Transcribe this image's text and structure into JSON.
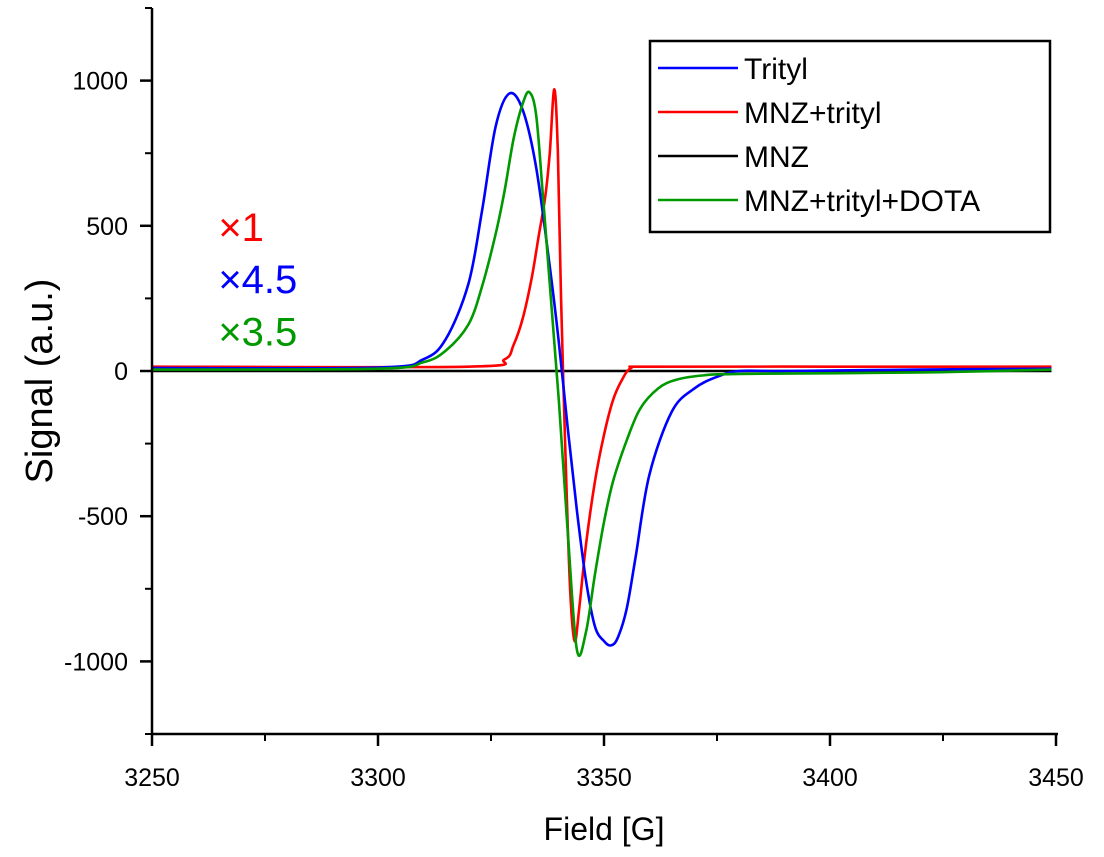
{
  "chart_data": {
    "type": "line",
    "xlabel": "Field [G]",
    "ylabel": "Signal (a.u.)",
    "xlim": [
      3250,
      3450
    ],
    "ylim": [
      -1250,
      1250
    ],
    "xticks": [
      3250,
      3300,
      3350,
      3400,
      3450
    ],
    "xtick_labels": [
      "3250",
      "3300",
      "3350",
      "3400",
      "3450"
    ],
    "yticks": [
      -1000,
      -500,
      0,
      500,
      1000
    ],
    "ytick_labels": [
      "-1000",
      "-500",
      "0",
      "500",
      "1000"
    ],
    "legend_position": "top-right",
    "series": [
      {
        "name": "Trityl",
        "color": "#0000ff",
        "x": [
          3250,
          3300,
          3310,
          3315,
          3320,
          3323,
          3326,
          3329,
          3332,
          3335,
          3338,
          3340,
          3342,
          3344,
          3346,
          3348,
          3350,
          3351.5,
          3353,
          3355,
          3357,
          3360,
          3365,
          3370,
          3375,
          3380,
          3390,
          3420,
          3449
        ],
        "values": [
          10,
          12,
          40,
          110,
          300,
          550,
          840,
          955,
          900,
          700,
          360,
          100,
          -200,
          -480,
          -720,
          -880,
          -930,
          -945,
          -920,
          -820,
          -640,
          -360,
          -140,
          -60,
          -20,
          0,
          0,
          5,
          8
        ]
      },
      {
        "name": "MNZ+trityl",
        "color": "#ff0000",
        "x": [
          3250,
          3320,
          3328,
          3330,
          3332,
          3334,
          3335.5,
          3337,
          3338,
          3339,
          3339.8,
          3340.5,
          3341.5,
          3342.5,
          3343.5,
          3344.5,
          3346,
          3348,
          3350,
          3352,
          3354,
          3356,
          3360,
          3400,
          3449
        ],
        "values": [
          15,
          15,
          40,
          90,
          180,
          320,
          460,
          600,
          750,
          970,
          750,
          250,
          -300,
          -750,
          -930,
          -820,
          -600,
          -380,
          -220,
          -100,
          -30,
          10,
          15,
          15,
          15
        ]
      },
      {
        "name": "MNZ",
        "color": "#000000",
        "x": [
          3250,
          3449
        ],
        "values": [
          0,
          0
        ]
      },
      {
        "name": "MNZ+trityl+DOTA",
        "color": "#009900",
        "x": [
          3250,
          3300,
          3310,
          3315,
          3320,
          3323,
          3326,
          3328,
          3330,
          3332,
          3333.5,
          3335,
          3336.5,
          3338,
          3340,
          3342,
          3344,
          3346,
          3348,
          3350,
          3352,
          3355,
          3358,
          3362,
          3366,
          3372,
          3380,
          3420,
          3449
        ],
        "values": [
          5,
          8,
          30,
          70,
          160,
          290,
          470,
          620,
          800,
          920,
          960,
          880,
          600,
          300,
          -100,
          -560,
          -960,
          -900,
          -700,
          -520,
          -380,
          -240,
          -130,
          -60,
          -30,
          -15,
          -10,
          -5,
          5
        ]
      }
    ],
    "annotations": [
      {
        "text": "×1",
        "color": "#ff0000",
        "x": 3266,
        "y": 500
      },
      {
        "text": "×4.5",
        "color": "#0000ff",
        "x": 3266,
        "y": 320
      },
      {
        "text": "×3.5",
        "color": "#009900",
        "x": 3266,
        "y": 140
      }
    ]
  }
}
